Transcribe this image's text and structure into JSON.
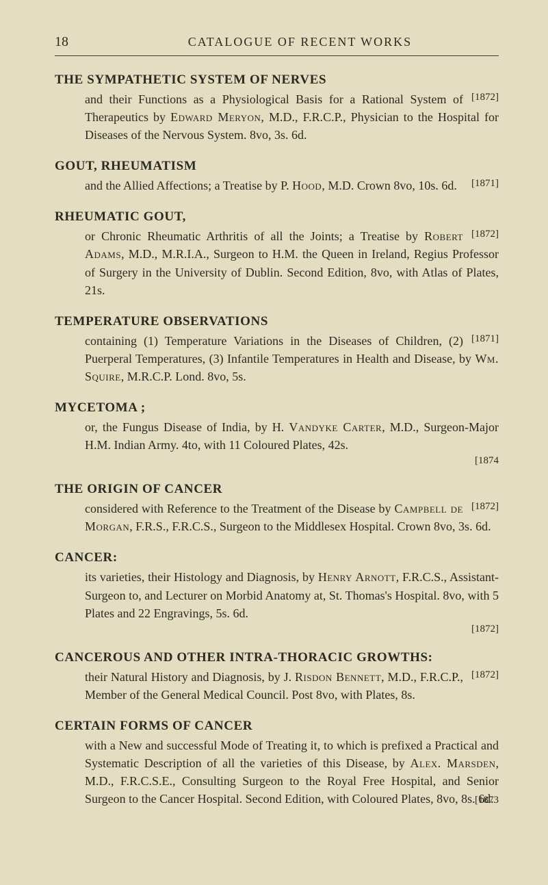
{
  "page_number": "18",
  "running_head": "CATALOGUE OF RECENT WORKS",
  "entries": [
    {
      "title": "THE SYMPATHETIC SYSTEM OF NERVES",
      "body_parts": [
        "and their Functions as a Physiological Basis for a Rational System of Therapeutics by ",
        "Edward Meryon",
        ", M.D., F.R.C.P., Physician to the Hospital for Diseases of the Nervous System. 8vo, 3s. 6d."
      ],
      "year": "[1872]"
    },
    {
      "title": "GOUT, RHEUMATISM",
      "body_parts": [
        "and the Allied Affections; a Treatise by P. ",
        "Hood",
        ", M.D.   Crown 8vo, 10s. 6d."
      ],
      "year": "[1871]"
    },
    {
      "title": "RHEUMATIC GOUT,",
      "body_parts": [
        "or Chronic Rheumatic Arthritis of all the Joints; a Treatise by ",
        "Robert Adams",
        ", M.D., M.R.I.A., Surgeon to H.M. the Queen in Ireland, Regius Professor of Surgery in the University of Dublin. Second Edition, 8vo, with Atlas of Plates, 21s."
      ],
      "year": "[1872]"
    },
    {
      "title": "TEMPERATURE OBSERVATIONS",
      "body_parts": [
        "containing (1) Temperature Variations in the Diseases of Children, (2) Puerperal Temperatures, (3) Infantile Temperatures in Health and Disease, by ",
        "Wm. Squire",
        ", M.R.C.P. Lond.   8vo, 5s."
      ],
      "year": "[1871]"
    },
    {
      "title": "MYCETOMA ;",
      "body_parts": [
        "or, the Fungus Disease of India, by H. ",
        "Vandyke Carter",
        ", M.D., Surgeon-Major H.M. Indian Army.   4to, with 11 Coloured Plates, 42s."
      ],
      "year": "[1874",
      "year_newline": true
    },
    {
      "title": "THE ORIGIN OF CANCER",
      "body_parts": [
        "considered with Reference to the Treatment of the Disease by ",
        "Campbell de Morgan",
        ", F.R.S., F.R.C.S., Surgeon to the Middlesex Hospital.   Crown 8vo, 3s. 6d."
      ],
      "year": "[1872]"
    },
    {
      "title": "CANCER:",
      "body_parts": [
        "its varieties, their Histology and Diagnosis, by ",
        "Henry Arnott",
        ", F.R.C.S., Assistant-Surgeon to, and Lecturer on Morbid Anatomy at, St. Thomas's Hospital.   8vo, with 5 Plates and 22 Engravings, 5s. 6d."
      ],
      "year": "[1872]",
      "year_newline": true
    },
    {
      "title": "CANCEROUS AND OTHER INTRA-THORACIC GROWTHS:",
      "body_parts": [
        "their Natural History and Diagnosis, by J. ",
        "Risdon Bennett",
        ", M.D., F.R.C.P., Member of the General Medical Council.   Post 8vo, with Plates, 8s."
      ],
      "year": "[1872]"
    },
    {
      "title": "CERTAIN FORMS OF CANCER",
      "body_parts": [
        "with a New and successful Mode of Treating it, to which is prefixed a Practical and Systematic Description of all the varieties of this Disease, by ",
        "Alex. Marsden",
        ", M.D., F.R.C.S.E., Consulting Surgeon to the Royal Free Hospital, and Senior Surgeon to the Cancer Hospital. Second Edition, with Coloured Plates, 8vo, 8s. 6d."
      ],
      "year": "[1873",
      "year_prev_line": true
    }
  ],
  "colors": {
    "background": "#e4ddc2",
    "text": "#2a2a20",
    "rule": "#3a3a2d"
  }
}
